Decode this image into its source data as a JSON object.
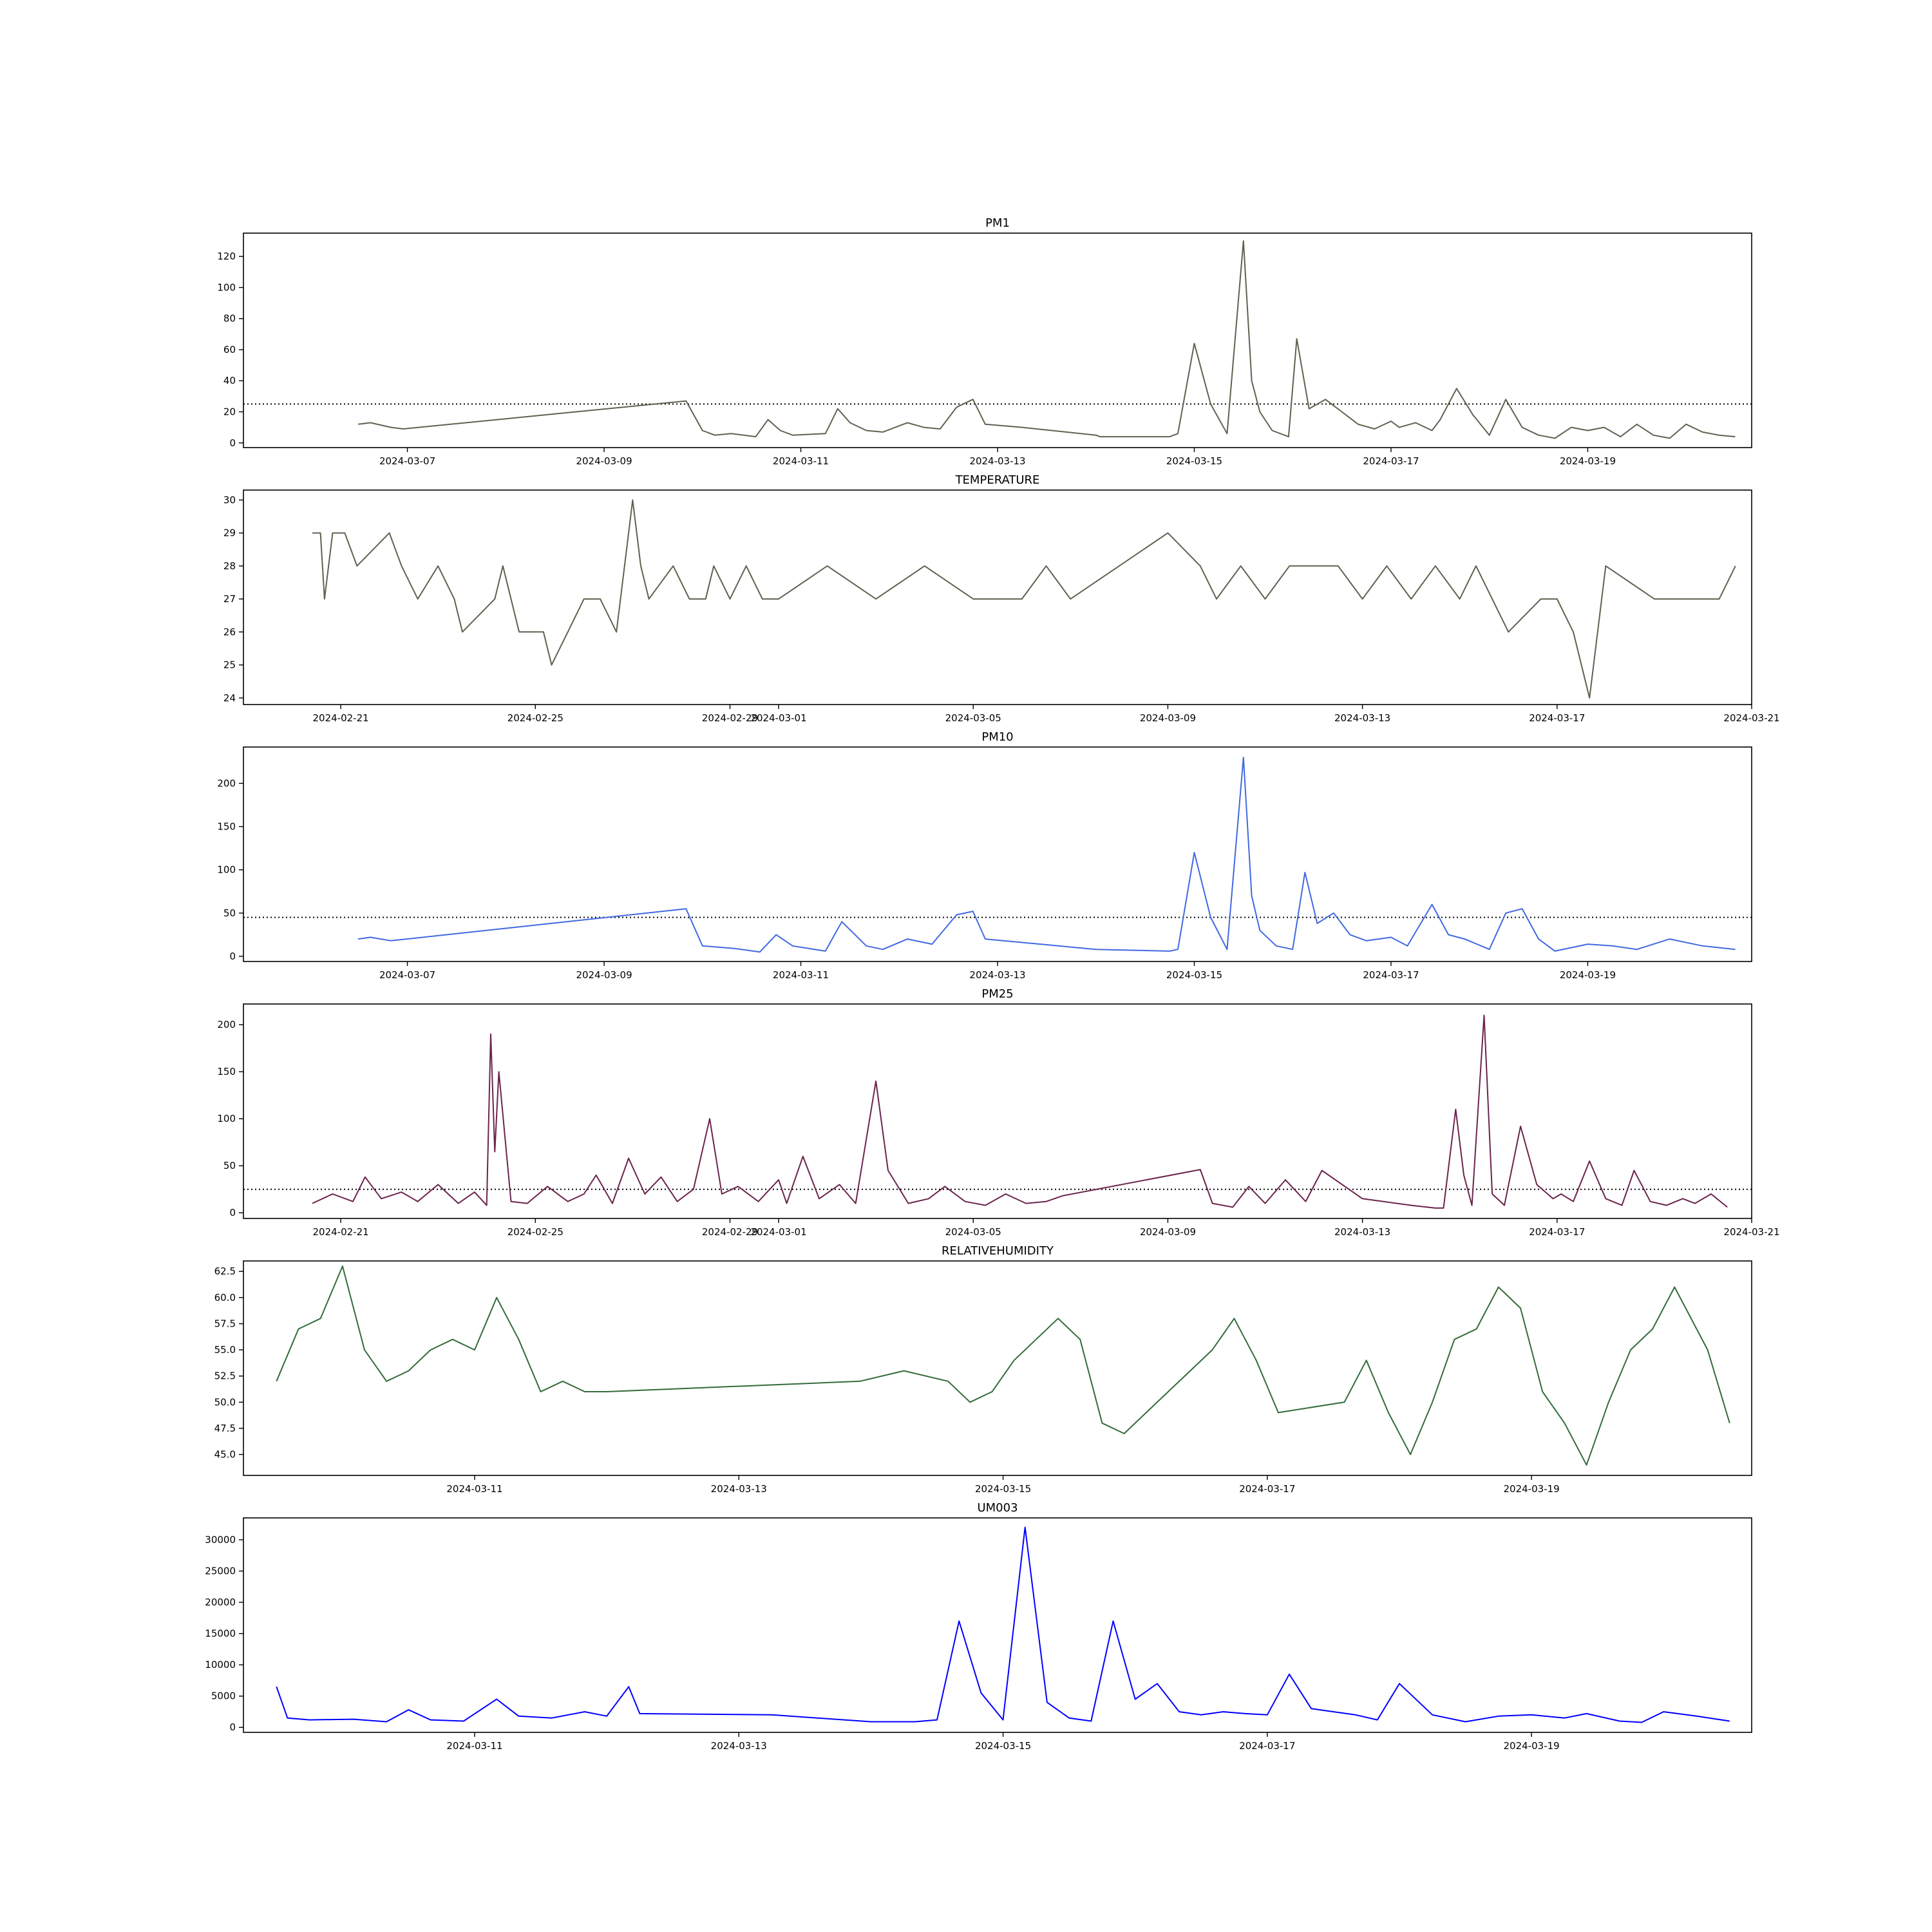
{
  "chart_data": [
    {
      "type": "line",
      "title": "PM1",
      "color": "#616150",
      "xlim": [
        "2024-03-05 08:00",
        "2024-03-20 16:00"
      ],
      "ylim": [
        -3,
        135
      ],
      "x_ticks": [
        "2024-03-07",
        "2024-03-09",
        "2024-03-11",
        "2024-03-13",
        "2024-03-15",
        "2024-03-17",
        "2024-03-19"
      ],
      "y_ticks": [
        0,
        20,
        40,
        60,
        80,
        100,
        120
      ],
      "reference_line": 25,
      "x": [
        "2024-03-06 12:00",
        "2024-03-06 15:00",
        "2024-03-06 20:00",
        "2024-03-06 23:00",
        "2024-03-09 20:00",
        "2024-03-10 00:00",
        "2024-03-10 03:00",
        "2024-03-10 07:00",
        "2024-03-10 13:00",
        "2024-03-10 16:00",
        "2024-03-10 19:00",
        "2024-03-10 22:00",
        "2024-03-11 06:00",
        "2024-03-11 09:00",
        "2024-03-11 12:00",
        "2024-03-11 16:00",
        "2024-03-11 20:00",
        "2024-03-12 02:00",
        "2024-03-12 06:00",
        "2024-03-12 10:00",
        "2024-03-12 14:00",
        "2024-03-12 18:00",
        "2024-03-12 21:00",
        "2024-03-13 06:00",
        "2024-03-14 00:00",
        "2024-03-14 01:00",
        "2024-03-14 18:00",
        "2024-03-14 20:00",
        "2024-03-15 00:00",
        "2024-03-15 04:00",
        "2024-03-15 08:00",
        "2024-03-15 12:00",
        "2024-03-15 14:00",
        "2024-03-15 16:00",
        "2024-03-15 19:00",
        "2024-03-15 23:00",
        "2024-03-16 01:00",
        "2024-03-16 04:00",
        "2024-03-16 08:00",
        "2024-03-16 12:00",
        "2024-03-16 16:00",
        "2024-03-16 20:00",
        "2024-03-17 00:00",
        "2024-03-17 02:00",
        "2024-03-17 06:00",
        "2024-03-17 10:00",
        "2024-03-17 12:00",
        "2024-03-17 16:00",
        "2024-03-17 20:00",
        "2024-03-18 00:00",
        "2024-03-18 04:00",
        "2024-03-18 08:00",
        "2024-03-18 12:00",
        "2024-03-18 16:00",
        "2024-03-18 20:00",
        "2024-03-19 00:00",
        "2024-03-19 04:00",
        "2024-03-19 08:00",
        "2024-03-19 12:00",
        "2024-03-19 16:00",
        "2024-03-19 20:00",
        "2024-03-20 00:00",
        "2024-03-20 04:00",
        "2024-03-20 08:00",
        "2024-03-20 12:00"
      ],
      "values": [
        12,
        13,
        10,
        9,
        27,
        8,
        5,
        6,
        4,
        15,
        8,
        5,
        6,
        22,
        13,
        8,
        7,
        13,
        10,
        9,
        23,
        28,
        12,
        10,
        5,
        4,
        4,
        6,
        64,
        25,
        6,
        130,
        40,
        20,
        8,
        4,
        67,
        22,
        28,
        20,
        12,
        9,
        14,
        10,
        13,
        8,
        15,
        35,
        18,
        5,
        28,
        10,
        5,
        3,
        10,
        8,
        10,
        4,
        12,
        5,
        3,
        12,
        7,
        5,
        4
      ]
    },
    {
      "type": "line",
      "title": "TEMPERATURE",
      "color": "#616150",
      "xlim": [
        "2024-02-19 00:00",
        "2024-03-21 00:00"
      ],
      "ylim": [
        23.8,
        30.3
      ],
      "x_ticks": [
        "2024-02-21",
        "2024-02-25",
        "2024-02-29",
        "2024-03-01",
        "2024-03-05",
        "2024-03-09",
        "2024-03-13",
        "2024-03-17",
        "2024-03-21"
      ],
      "y_ticks": [
        24,
        25,
        26,
        27,
        28,
        29,
        30
      ],
      "x": [
        "2024-02-20 10:00",
        "2024-02-20 14:00",
        "2024-02-20 16:00",
        "2024-02-20 18:00",
        "2024-02-20 20:00",
        "2024-02-21 02:00",
        "2024-02-21 08:00",
        "2024-02-22 00:00",
        "2024-02-22 06:00",
        "2024-02-22 14:00",
        "2024-02-23 00:00",
        "2024-02-23 08:00",
        "2024-02-23 12:00",
        "2024-02-24 04:00",
        "2024-02-24 08:00",
        "2024-02-24 12:00",
        "2024-02-24 16:00",
        "2024-02-25 04:00",
        "2024-02-25 08:00",
        "2024-02-25 16:00",
        "2024-02-26 00:00",
        "2024-02-26 08:00",
        "2024-02-26 16:00",
        "2024-02-27 00:00",
        "2024-02-27 04:00",
        "2024-02-27 08:00",
        "2024-02-27 20:00",
        "2024-02-28 04:00",
        "2024-02-28 12:00",
        "2024-02-28 16:00",
        "2024-02-29 00:00",
        "2024-02-29 08:00",
        "2024-02-29 16:00",
        "2024-03-01 00:00",
        "2024-03-02 00:00",
        "2024-03-03 00:00",
        "2024-03-04 00:00",
        "2024-03-05 00:00",
        "2024-03-06 00:00",
        "2024-03-06 12:00",
        "2024-03-07 00:00",
        "2024-03-08 00:00",
        "2024-03-09 00:00",
        "2024-03-09 16:00",
        "2024-03-10 00:00",
        "2024-03-10 12:00",
        "2024-03-11 00:00",
        "2024-03-11 12:00",
        "2024-03-12 00:00",
        "2024-03-12 12:00",
        "2024-03-13 00:00",
        "2024-03-13 12:00",
        "2024-03-14 00:00",
        "2024-03-14 12:00",
        "2024-03-15 00:00",
        "2024-03-15 08:00",
        "2024-03-15 16:00",
        "2024-03-16 00:00",
        "2024-03-16 16:00",
        "2024-03-17 00:00",
        "2024-03-17 08:00",
        "2024-03-17 16:00",
        "2024-03-18 00:00",
        "2024-03-19 00:00",
        "2024-03-20 00:00",
        "2024-03-20 08:00",
        "2024-03-20 16:00"
      ],
      "values": [
        29,
        29,
        27,
        28,
        29,
        29,
        28,
        29,
        28,
        27,
        28,
        27,
        26,
        27,
        28,
        27,
        26,
        26,
        25,
        26,
        27,
        27,
        26,
        30,
        28,
        27,
        28,
        27,
        27,
        28,
        27,
        28,
        27,
        27,
        28,
        27,
        28,
        27,
        27,
        28,
        27,
        28,
        29,
        28,
        27,
        28,
        27,
        28,
        28,
        28,
        27,
        28,
        27,
        28,
        27,
        28,
        27,
        26,
        27,
        27,
        26,
        24,
        28,
        27,
        27,
        27,
        28
      ]
    },
    {
      "type": "line",
      "title": "PM10",
      "color": "#4169e1",
      "xlim": [
        "2024-03-05 08:00",
        "2024-03-20 16:00"
      ],
      "ylim": [
        -6,
        242
      ],
      "x_ticks": [
        "2024-03-07",
        "2024-03-09",
        "2024-03-11",
        "2024-03-13",
        "2024-03-15",
        "2024-03-17",
        "2024-03-19"
      ],
      "y_ticks": [
        0,
        50,
        100,
        150,
        200
      ],
      "reference_line": 45,
      "x": [
        "2024-03-06 12:00",
        "2024-03-06 15:00",
        "2024-03-06 20:00",
        "2024-03-09 20:00",
        "2024-03-10 00:00",
        "2024-03-10 08:00",
        "2024-03-10 14:00",
        "2024-03-10 18:00",
        "2024-03-10 22:00",
        "2024-03-11 06:00",
        "2024-03-11 10:00",
        "2024-03-11 16:00",
        "2024-03-11 20:00",
        "2024-03-12 02:00",
        "2024-03-12 08:00",
        "2024-03-12 14:00",
        "2024-03-12 18:00",
        "2024-03-12 21:00",
        "2024-03-14 00:00",
        "2024-03-14 18:00",
        "2024-03-14 20:00",
        "2024-03-15 00:00",
        "2024-03-15 04:00",
        "2024-03-15 08:00",
        "2024-03-15 12:00",
        "2024-03-15 14:00",
        "2024-03-15 16:00",
        "2024-03-15 20:00",
        "2024-03-16 00:00",
        "2024-03-16 03:00",
        "2024-03-16 06:00",
        "2024-03-16 10:00",
        "2024-03-16 14:00",
        "2024-03-16 18:00",
        "2024-03-17 00:00",
        "2024-03-17 04:00",
        "2024-03-17 10:00",
        "2024-03-17 14:00",
        "2024-03-17 18:00",
        "2024-03-18 00:00",
        "2024-03-18 04:00",
        "2024-03-18 08:00",
        "2024-03-18 12:00",
        "2024-03-18 16:00",
        "2024-03-19 00:00",
        "2024-03-19 06:00",
        "2024-03-19 12:00",
        "2024-03-19 20:00",
        "2024-03-20 04:00",
        "2024-03-20 12:00"
      ],
      "values": [
        20,
        22,
        18,
        55,
        12,
        9,
        5,
        25,
        12,
        6,
        40,
        12,
        8,
        20,
        14,
        48,
        52,
        20,
        8,
        6,
        8,
        120,
        45,
        8,
        230,
        70,
        30,
        12,
        8,
        97,
        38,
        50,
        25,
        18,
        22,
        12,
        60,
        25,
        20,
        8,
        50,
        55,
        20,
        6,
        14,
        12,
        8,
        20,
        12,
        8
      ]
    },
    {
      "type": "line",
      "title": "PM25",
      "color": "#6b244d",
      "xlim": [
        "2024-02-19 00:00",
        "2024-03-21 00:00"
      ],
      "ylim": [
        -6,
        222
      ],
      "x_ticks": [
        "2024-02-21",
        "2024-02-25",
        "2024-02-29",
        "2024-03-01",
        "2024-03-05",
        "2024-03-09",
        "2024-03-13",
        "2024-03-17",
        "2024-03-21"
      ],
      "y_ticks": [
        0,
        50,
        100,
        150,
        200
      ],
      "reference_line": 25,
      "x": [
        "2024-02-20 10:00",
        "2024-02-20 20:00",
        "2024-02-21 06:00",
        "2024-02-21 12:00",
        "2024-02-21 20:00",
        "2024-02-22 06:00",
        "2024-02-22 14:00",
        "2024-02-23 00:00",
        "2024-02-23 10:00",
        "2024-02-23 18:00",
        "2024-02-24 00:00",
        "2024-02-24 02:00",
        "2024-02-24 04:00",
        "2024-02-24 06:00",
        "2024-02-24 12:00",
        "2024-02-24 20:00",
        "2024-02-25 06:00",
        "2024-02-25 16:00",
        "2024-02-26 00:00",
        "2024-02-26 06:00",
        "2024-02-26 14:00",
        "2024-02-26 22:00",
        "2024-02-27 06:00",
        "2024-02-27 14:00",
        "2024-02-27 22:00",
        "2024-02-28 06:00",
        "2024-02-28 14:00",
        "2024-02-28 20:00",
        "2024-02-29 04:00",
        "2024-02-29 14:00",
        "2024-03-01 00:00",
        "2024-03-01 04:00",
        "2024-03-01 12:00",
        "2024-03-01 20:00",
        "2024-03-02 06:00",
        "2024-03-02 14:00",
        "2024-03-03 00:00",
        "2024-03-03 06:00",
        "2024-03-03 16:00",
        "2024-03-04 02:00",
        "2024-03-04 10:00",
        "2024-03-04 20:00",
        "2024-03-05 06:00",
        "2024-03-05 16:00",
        "2024-03-06 02:00",
        "2024-03-06 12:00",
        "2024-03-06 20:00",
        "2024-03-09 16:00",
        "2024-03-09 22:00",
        "2024-03-10 08:00",
        "2024-03-10 16:00",
        "2024-03-11 00:00",
        "2024-03-11 10:00",
        "2024-03-11 20:00",
        "2024-03-12 04:00",
        "2024-03-13 00:00",
        "2024-03-14 00:00",
        "2024-03-14 12:00",
        "2024-03-14 16:00",
        "2024-03-14 22:00",
        "2024-03-15 02:00",
        "2024-03-15 06:00",
        "2024-03-15 12:00",
        "2024-03-15 16:00",
        "2024-03-15 22:00",
        "2024-03-16 06:00",
        "2024-03-16 14:00",
        "2024-03-16 22:00",
        "2024-03-17 02:00",
        "2024-03-17 08:00",
        "2024-03-17 16:00",
        "2024-03-18 00:00",
        "2024-03-18 08:00",
        "2024-03-18 14:00",
        "2024-03-18 22:00",
        "2024-03-19 06:00",
        "2024-03-19 14:00",
        "2024-03-19 20:00",
        "2024-03-20 04:00",
        "2024-03-20 12:00"
      ],
      "values": [
        10,
        20,
        12,
        38,
        15,
        22,
        12,
        30,
        10,
        22,
        8,
        190,
        65,
        150,
        12,
        10,
        28,
        12,
        20,
        40,
        10,
        58,
        20,
        38,
        12,
        25,
        100,
        20,
        28,
        12,
        35,
        10,
        60,
        15,
        30,
        10,
        140,
        45,
        10,
        15,
        28,
        12,
        8,
        20,
        10,
        12,
        18,
        46,
        10,
        6,
        28,
        10,
        35,
        12,
        45,
        15,
        8,
        5,
        5,
        110,
        40,
        8,
        210,
        20,
        8,
        92,
        30,
        15,
        20,
        12,
        55,
        15,
        8,
        45,
        12,
        8,
        15,
        10,
        20,
        6
      ]
    },
    {
      "type": "line",
      "title": "RELATIVEHUMIDITY",
      "color": "#336b3a",
      "xlim": [
        "2024-03-09 06:00",
        "2024-03-20 16:00"
      ],
      "ylim": [
        43,
        63.5
      ],
      "x_ticks": [
        "2024-03-11",
        "2024-03-13",
        "2024-03-15",
        "2024-03-17",
        "2024-03-19"
      ],
      "y_ticks": [
        45.0,
        47.5,
        50.0,
        52.5,
        55.0,
        57.5,
        60.0,
        62.5
      ],
      "x": [
        "2024-03-09 12:00",
        "2024-03-09 16:00",
        "2024-03-09 20:00",
        "2024-03-10 00:00",
        "2024-03-10 04:00",
        "2024-03-10 08:00",
        "2024-03-10 12:00",
        "2024-03-10 14:00",
        "2024-03-10 16:00",
        "2024-03-10 20:00",
        "2024-03-11 00:00",
        "2024-03-11 04:00",
        "2024-03-11 08:00",
        "2024-03-11 12:00",
        "2024-03-11 16:00",
        "2024-03-11 20:00",
        "2024-03-12 00:00",
        "2024-03-13 22:00",
        "2024-03-14 06:00",
        "2024-03-14 14:00",
        "2024-03-14 18:00",
        "2024-03-14 22:00",
        "2024-03-15 02:00",
        "2024-03-15 06:00",
        "2024-03-15 10:00",
        "2024-03-15 14:00",
        "2024-03-15 18:00",
        "2024-03-15 22:00",
        "2024-03-16 02:00",
        "2024-03-16 06:00",
        "2024-03-16 10:00",
        "2024-03-16 14:00",
        "2024-03-16 18:00",
        "2024-03-16 22:00",
        "2024-03-17 02:00",
        "2024-03-17 14:00",
        "2024-03-17 18:00",
        "2024-03-17 22:00",
        "2024-03-18 02:00",
        "2024-03-18 06:00",
        "2024-03-18 10:00",
        "2024-03-18 14:00",
        "2024-03-18 18:00",
        "2024-03-18 22:00",
        "2024-03-19 02:00",
        "2024-03-19 06:00",
        "2024-03-19 10:00",
        "2024-03-19 14:00",
        "2024-03-19 18:00",
        "2024-03-19 22:00",
        "2024-03-20 02:00",
        "2024-03-20 08:00",
        "2024-03-20 12:00"
      ],
      "values": [
        52,
        57,
        58,
        63,
        55,
        52,
        53,
        54,
        55,
        56,
        55,
        60,
        56,
        51,
        52,
        51,
        51,
        52,
        53,
        52,
        50,
        51,
        54,
        56,
        58,
        56,
        48,
        47,
        49,
        51,
        53,
        55,
        58,
        54,
        49,
        50,
        54,
        49,
        45,
        50,
        56,
        57,
        61,
        59,
        51,
        48,
        44,
        50,
        55,
        57,
        61,
        55,
        48
      ]
    },
    {
      "type": "line",
      "title": "UM003",
      "color": "#0000ff",
      "xlim": [
        "2024-03-09 06:00",
        "2024-03-20 16:00"
      ],
      "ylim": [
        -800,
        33500
      ],
      "x_ticks": [
        "2024-03-11",
        "2024-03-13",
        "2024-03-15",
        "2024-03-17",
        "2024-03-19"
      ],
      "y_ticks": [
        0,
        5000,
        10000,
        15000,
        20000,
        25000,
        30000
      ],
      "x": [
        "2024-03-09 12:00",
        "2024-03-09 14:00",
        "2024-03-09 18:00",
        "2024-03-10 02:00",
        "2024-03-10 08:00",
        "2024-03-10 12:00",
        "2024-03-10 16:00",
        "2024-03-10 22:00",
        "2024-03-11 04:00",
        "2024-03-11 08:00",
        "2024-03-11 14:00",
        "2024-03-11 20:00",
        "2024-03-12 00:00",
        "2024-03-12 04:00",
        "2024-03-12 06:00",
        "2024-03-13 06:00",
        "2024-03-14 00:00",
        "2024-03-14 04:00",
        "2024-03-14 08:00",
        "2024-03-14 12:00",
        "2024-03-14 16:00",
        "2024-03-14 20:00",
        "2024-03-15 00:00",
        "2024-03-15 04:00",
        "2024-03-15 08:00",
        "2024-03-15 12:00",
        "2024-03-15 16:00",
        "2024-03-15 20:00",
        "2024-03-16 00:00",
        "2024-03-16 04:00",
        "2024-03-16 08:00",
        "2024-03-16 12:00",
        "2024-03-16 16:00",
        "2024-03-16 20:00",
        "2024-03-17 00:00",
        "2024-03-17 04:00",
        "2024-03-17 08:00",
        "2024-03-17 12:00",
        "2024-03-17 16:00",
        "2024-03-17 20:00",
        "2024-03-18 00:00",
        "2024-03-18 06:00",
        "2024-03-18 12:00",
        "2024-03-18 18:00",
        "2024-03-19 00:00",
        "2024-03-19 06:00",
        "2024-03-19 10:00",
        "2024-03-19 16:00",
        "2024-03-19 20:00",
        "2024-03-20 00:00",
        "2024-03-20 06:00",
        "2024-03-20 12:00"
      ],
      "values": [
        6500,
        1500,
        1200,
        1300,
        900,
        2800,
        1200,
        1000,
        4500,
        1800,
        1500,
        2500,
        1800,
        6500,
        2200,
        2000,
        900,
        900,
        900,
        1200,
        17000,
        5500,
        1200,
        32000,
        4000,
        1500,
        1000,
        17000,
        4500,
        7000,
        2500,
        2000,
        2500,
        2200,
        2000,
        8500,
        3000,
        2500,
        2000,
        1200,
        7000,
        2000,
        900,
        1800,
        2000,
        1500,
        2200,
        1000,
        800,
        2500,
        1800,
        1000
      ]
    }
  ]
}
